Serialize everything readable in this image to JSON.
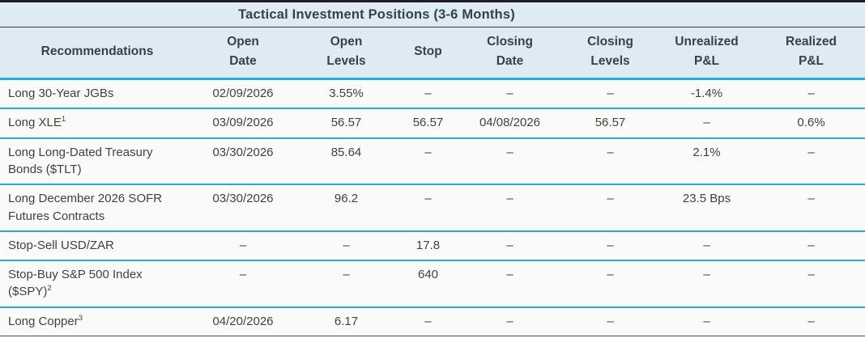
{
  "title": "Tactical Investment Positions (3-6 Months)",
  "colors": {
    "header_background": "#DFEBF2",
    "separator_accent": "#2BACD6",
    "top_border": "#1F1F1F",
    "bottom_border": "#4F4F4F",
    "text": "#3F4145"
  },
  "table": {
    "columns": [
      "Recommendations",
      "Open\nDate",
      "Open\nLevels",
      "Stop",
      "Closing\nDate",
      "Closing\nLevels",
      "Unrealized\nP&L",
      "Realized\nP&L"
    ],
    "rows": [
      {
        "name": "Long 30-Year JGBs",
        "open_date": "02/09/2026",
        "open_levels": "3.55%",
        "stop": "–",
        "closing_date": "–",
        "closing_levels": "–",
        "unrealized_pnl": "-1.4%",
        "realized_pnl": "–"
      },
      {
        "name": "Long XLE",
        "sup": "1",
        "open_date": "03/09/2026",
        "open_levels": "56.57",
        "stop": "56.57",
        "closing_date": "04/08/2026",
        "closing_levels": "56.57",
        "unrealized_pnl": "–",
        "realized_pnl": "0.6%"
      },
      {
        "name": "Long Long-Dated Treasury Bonds ($TLT)",
        "open_date": "03/30/2026",
        "open_levels": "85.64",
        "stop": "–",
        "closing_date": "–",
        "closing_levels": "–",
        "unrealized_pnl": "2.1%",
        "realized_pnl": "–"
      },
      {
        "name": "Long December 2026 SOFR Futures Contracts",
        "open_date": "03/30/2026",
        "open_levels": "96.2",
        "stop": "–",
        "closing_date": "–",
        "closing_levels": "–",
        "unrealized_pnl": "23.5 Bps",
        "realized_pnl": "–"
      },
      {
        "name": "Stop-Sell USD/ZAR",
        "open_date": "–",
        "open_levels": "–",
        "stop": "17.8",
        "closing_date": "–",
        "closing_levels": "–",
        "unrealized_pnl": "–",
        "realized_pnl": "–"
      },
      {
        "name": "Stop-Buy S&P 500 Index ($SPY)",
        "sup": "2",
        "open_date": "–",
        "open_levels": "–",
        "stop": "640",
        "closing_date": "–",
        "closing_levels": "–",
        "unrealized_pnl": "–",
        "realized_pnl": "–"
      },
      {
        "name": "Long Copper",
        "sup": "3",
        "open_date": "04/20/2026",
        "open_levels": "6.17",
        "stop": "–",
        "closing_date": "–",
        "closing_levels": "–",
        "unrealized_pnl": "–",
        "realized_pnl": "–"
      }
    ]
  }
}
